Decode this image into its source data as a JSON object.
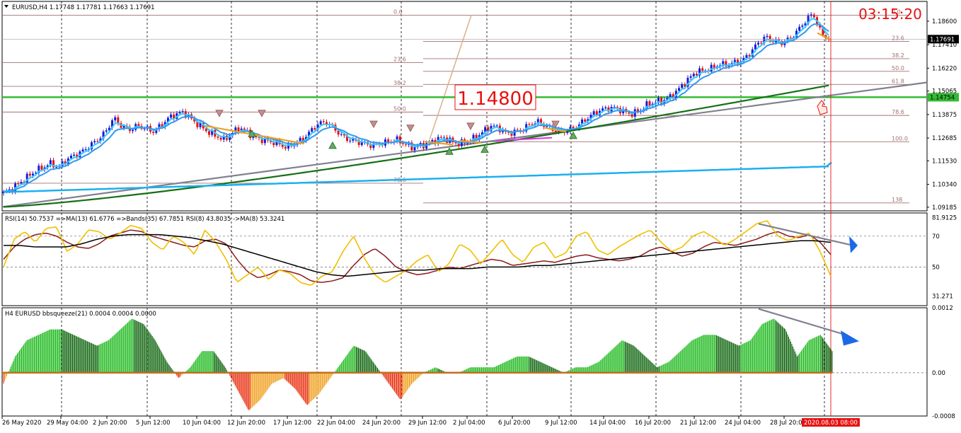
{
  "window": {
    "symbol_label": "EURUSD,H4",
    "ohlc": "1.17748 1.17781 1.17663 1.17691",
    "countdown": "03:15:20",
    "price_box": "1.14800"
  },
  "colors": {
    "bull_bar": "#1a1ad8",
    "bear_bar": "#e81010",
    "grid": "#000000",
    "ma_fast": "#33ccff",
    "ma_mid": "#3399ee",
    "ma_slow": "#167016",
    "ma_long": "#1ab0f0",
    "trendline": "#808090",
    "hline_green": "#33bb33",
    "fibo": "#a07070",
    "rsi_yellow": "#f0c000",
    "rsi_brown": "#8b1a1a",
    "rsi_black": "#000000",
    "hist_green": "#22bb22",
    "hist_dark": "#116611",
    "hist_red": "#e83010",
    "hist_orange": "#f0a020",
    "zero_line": "#c07020",
    "arrow_blue": "#1a6ae8",
    "timestamp_bg": "#e81010"
  },
  "chart_data": [
    {
      "type": "candlestick",
      "title": "EURUSD,H4",
      "ylim": [
        1.09,
        1.196
      ],
      "y_ticks": [
        "1.18600",
        "1.17410",
        "1.16220",
        "1.15065",
        "1.13875",
        "1.12685",
        "1.11530",
        "1.10340",
        "1.09185"
      ],
      "y_tick_values": [
        1.186,
        1.1741,
        1.1622,
        1.15065,
        1.13875,
        1.12685,
        1.1153,
        1.1034,
        1.09185
      ],
      "last_price": "1.17691",
      "line_price": "1.14754",
      "x_ticks": [
        "26 May 2020",
        "29 May 04:00",
        "2 Jun 20:00",
        "5 Jun 12:00",
        "10 Jun 04:00",
        "12 Jun 20:00",
        "17 Jun 12:00",
        "22 Jun 04:00",
        "24 Jun 20:00",
        "29 Jun 12:00",
        "2 Jul 04:00",
        "6 Jul 20:00",
        "9 Jul 12:00",
        "14 Jul 04:00",
        "16 Jul 20:00",
        "21 Jul 12:00",
        "24 Jul 04:00",
        "28 Jul 20:00"
      ],
      "current_time_label": "2020.08.03 08:00",
      "fibo_levels_right": [
        "0.0",
        "23.6",
        "38.2",
        "50.0",
        "61.8",
        "78.6",
        "100.0",
        "138"
      ],
      "fibo_levels_right_values": [
        1.189,
        1.1758,
        1.167,
        1.1606,
        1.154,
        1.1383,
        1.125,
        1.094
      ],
      "fibo_levels_left": [
        "0.0",
        "23.6",
        "38.2",
        "50.0",
        "78.6"
      ],
      "fibo_levels_left_values": [
        1.189,
        1.165,
        1.153,
        1.14,
        1.104
      ],
      "price_path": [
        1.099,
        1.101,
        1.104,
        1.107,
        1.11,
        1.112,
        1.114,
        1.112,
        1.116,
        1.118,
        1.12,
        1.123,
        1.126,
        1.13,
        1.137,
        1.133,
        1.131,
        1.133,
        1.132,
        1.13,
        1.133,
        1.137,
        1.139,
        1.14,
        1.136,
        1.133,
        1.13,
        1.128,
        1.126,
        1.129,
        1.132,
        1.13,
        1.127,
        1.126,
        1.125,
        1.124,
        1.122,
        1.124,
        1.126,
        1.13,
        1.134,
        1.135,
        1.132,
        1.128,
        1.126,
        1.125,
        1.124,
        1.123,
        1.124,
        1.125,
        1.126,
        1.124,
        1.122,
        1.123,
        1.124,
        1.126,
        1.127,
        1.125,
        1.124,
        1.125,
        1.127,
        1.13,
        1.133,
        1.132,
        1.129,
        1.13,
        1.131,
        1.134,
        1.135,
        1.133,
        1.131,
        1.13,
        1.131,
        1.133,
        1.136,
        1.139,
        1.141,
        1.142,
        1.142,
        1.14,
        1.139,
        1.141,
        1.144,
        1.145,
        1.146,
        1.148,
        1.152,
        1.156,
        1.16,
        1.161,
        1.162,
        1.164,
        1.164,
        1.165,
        1.166,
        1.17,
        1.175,
        1.178,
        1.176,
        1.175,
        1.177,
        1.181,
        1.186,
        1.19,
        1.18,
        1.1769
      ]
    },
    {
      "type": "line",
      "title": "RSI(14) 50.7537  =>MA(13) 61.6776  =>Bands(35) 67.7851  RSI(8) 43.8035  ->MA(8) 53.3241",
      "ylim": [
        25,
        85
      ],
      "y_ticks": [
        "81.9125",
        "70",
        "50",
        "31.271"
      ],
      "y_tick_values": [
        81.9125,
        70,
        50,
        31.271
      ],
      "series": [
        {
          "name": "RSI(14)",
          "color": "#8b1a1a",
          "values": [
            55,
            63,
            68,
            71,
            72,
            70,
            66,
            63,
            62,
            65,
            70,
            72,
            74,
            73,
            70,
            68,
            66,
            64,
            63,
            67,
            68,
            65,
            55,
            47,
            43,
            45,
            48,
            47,
            45,
            41,
            40,
            41,
            43,
            51,
            58,
            62,
            57,
            50,
            47,
            45,
            46,
            48,
            50,
            49,
            51,
            53,
            55,
            54,
            51,
            52,
            53,
            54,
            53,
            55,
            57,
            58,
            56,
            55,
            54,
            55,
            57,
            61,
            63,
            60,
            57,
            59,
            63,
            66,
            65,
            64,
            66,
            68,
            71,
            73,
            70,
            69,
            71,
            66,
            58
          ]
        },
        {
          "name": "RSI(8)",
          "color": "#f0c000",
          "values": [
            50,
            68,
            73,
            66,
            75,
            76,
            60,
            65,
            74,
            73,
            68,
            72,
            77,
            75,
            66,
            61,
            70,
            66,
            58,
            74,
            66,
            55,
            40,
            45,
            50,
            42,
            48,
            46,
            40,
            38,
            44,
            47,
            60,
            70,
            56,
            45,
            40,
            44,
            48,
            54,
            58,
            47,
            52,
            65,
            61,
            52,
            60,
            68,
            58,
            53,
            63,
            66,
            56,
            59,
            70,
            73,
            61,
            58,
            63,
            67,
            71,
            74,
            66,
            60,
            63,
            70,
            73,
            69,
            64,
            68,
            73,
            78,
            80,
            70,
            67,
            70,
            72,
            60,
            44
          ]
        },
        {
          "name": "MA(13)",
          "color": "#000000",
          "values": [
            64,
            64,
            63,
            63,
            63,
            65,
            68,
            70,
            71,
            71,
            71,
            70,
            69,
            67,
            65,
            62,
            59,
            56,
            53,
            50,
            47,
            45,
            44,
            45,
            46,
            47,
            48,
            48,
            49,
            49,
            49,
            50,
            50,
            50,
            51,
            51,
            52,
            53,
            54,
            55,
            56,
            57,
            58,
            59,
            60,
            61,
            62,
            63,
            64,
            65,
            66,
            67,
            67,
            66
          ]
        }
      ]
    },
    {
      "type": "bar",
      "title": "H4 EURUSD bbsqueeze(21) 0.0004 0.0004 0.0000",
      "ylim": [
        -0.0008,
        0.0012
      ],
      "y_ticks": [
        "0.0012",
        "0.00",
        "-0.0008"
      ],
      "y_tick_values": [
        0.0012,
        0.0,
        -0.0008
      ],
      "values": [
        -0.0002,
        0.0003,
        0.0006,
        0.0007,
        0.0008,
        0.0008,
        0.0007,
        0.0006,
        0.0005,
        0.0006,
        0.0008,
        0.001,
        0.0009,
        0.0006,
        0.0002,
        -0.0001,
        0.0001,
        0.0004,
        0.0004,
        0.0001,
        -0.0003,
        -0.0007,
        -0.0005,
        -0.0002,
        -0.0001,
        -0.0003,
        -0.0006,
        -0.0004,
        -0.0001,
        0.0002,
        0.0005,
        0.0004,
        0.0001,
        -0.0002,
        -0.0005,
        -0.0002,
        0.0,
        0.0001,
        0.0,
        0.0,
        0.0001,
        0.0001,
        0.0001,
        0.0002,
        0.0003,
        0.0003,
        0.0002,
        0.0001,
        0.0,
        0.0001,
        0.0001,
        0.0002,
        0.0004,
        0.0006,
        0.0005,
        0.0003,
        0.0001,
        0.0002,
        0.0004,
        0.0006,
        0.0007,
        0.0007,
        0.0006,
        0.0005,
        0.0006,
        0.0009,
        0.001,
        0.0008,
        0.0003,
        0.0006,
        0.0007,
        0.0004
      ]
    }
  ]
}
